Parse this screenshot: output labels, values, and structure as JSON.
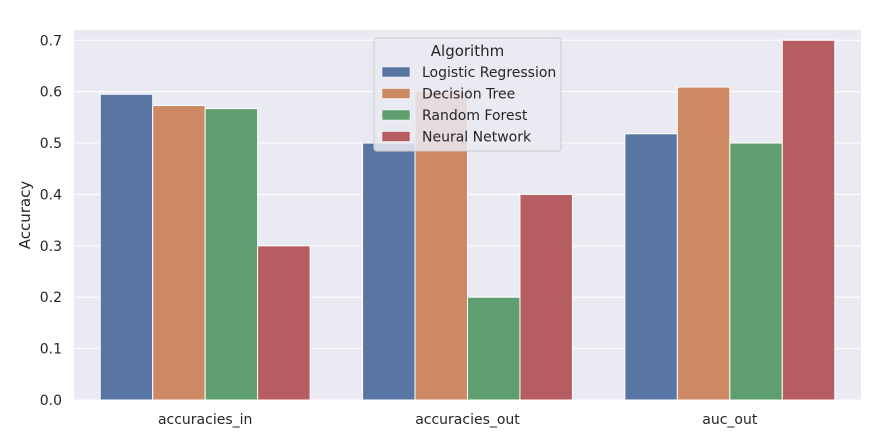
{
  "chart_data": {
    "type": "bar",
    "categories": [
      "accuracies_in",
      "accuracies_out",
      "auc_out"
    ],
    "series": [
      {
        "name": "Logistic Regression",
        "values": [
          0.595,
          0.5,
          0.518
        ],
        "color": "#5875a4"
      },
      {
        "name": "Decision Tree",
        "values": [
          0.573,
          0.6,
          0.609
        ],
        "color": "#cc8963"
      },
      {
        "name": "Random Forest",
        "values": [
          0.567,
          0.2,
          0.5
        ],
        "color": "#5f9e6e"
      },
      {
        "name": "Neural Network",
        "values": [
          0.3,
          0.4,
          0.7
        ],
        "color": "#b55d60"
      }
    ],
    "ylabel": "Accuracy",
    "xlabel": "",
    "ylim": [
      0,
      0.72
    ],
    "yticks": [
      "0.0",
      "0.1",
      "0.2",
      "0.3",
      "0.4",
      "0.5",
      "0.6",
      "0.7"
    ],
    "grid": true,
    "legend": {
      "title": "Algorithm",
      "placement": "top-center"
    },
    "background": "#eaeaf2"
  }
}
